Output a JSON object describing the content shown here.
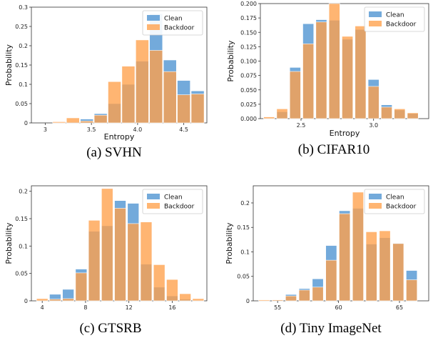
{
  "colors": {
    "clean": "#5b9bd5",
    "backdoor": "#ffa04a"
  },
  "chart_data": [
    {
      "type": "bar",
      "caption": "(a)  SVHN",
      "xlabel": "Entropy",
      "ylabel": "Probability",
      "xlim": [
        2.85,
        4.75
      ],
      "ylim": [
        0,
        0.3
      ],
      "xticks": [
        3,
        3.5,
        4.0,
        4.5
      ],
      "xtick_labels": [
        "3",
        "3.5",
        "4.0",
        "4.5"
      ],
      "yticks": [
        0,
        0.05,
        0.1,
        0.15,
        0.2,
        0.25,
        0.3
      ],
      "ytick_labels": [
        "0",
        "0.05",
        "0.1",
        "0.15",
        "0.2",
        "0.25",
        "0.3"
      ],
      "bar_width": 0.14,
      "legend": "top-right",
      "series": [
        {
          "name": "Clean",
          "x": [
            3.15,
            3.3,
            3.45,
            3.6,
            3.75,
            3.9,
            4.05,
            4.2,
            4.35,
            4.5,
            4.65
          ],
          "values": [
            0.001,
            0.002,
            0.01,
            0.024,
            0.05,
            0.1,
            0.16,
            0.283,
            0.163,
            0.11,
            0.083
          ]
        },
        {
          "name": "Backdoor",
          "x": [
            3.15,
            3.3,
            3.45,
            3.6,
            3.75,
            3.9,
            4.05,
            4.2,
            4.35,
            4.5,
            4.65
          ],
          "values": [
            0.003,
            0.013,
            0.005,
            0.02,
            0.107,
            0.147,
            0.215,
            0.188,
            0.133,
            0.073,
            0.075
          ]
        }
      ]
    },
    {
      "type": "bar",
      "caption": "(b)  CIFAR10",
      "xlabel": "Entropy",
      "ylabel": "Probability",
      "xlim": [
        2.22,
        3.38
      ],
      "ylim": [
        0,
        0.2
      ],
      "xticks": [
        2.5,
        3.0
      ],
      "xtick_labels": [
        "2.5",
        "3.0"
      ],
      "yticks": [
        0,
        0.025,
        0.05,
        0.075,
        0.1,
        0.125,
        0.15,
        0.175,
        0.2
      ],
      "ytick_labels": [
        "0.000",
        "0.025",
        "0.050",
        "0.075",
        "0.100",
        "0.125",
        "0.150",
        "0.175",
        "0.200"
      ],
      "bar_width": 0.075,
      "legend": "top-right",
      "series": [
        {
          "name": "Clean",
          "x": [
            2.28,
            2.37,
            2.46,
            2.55,
            2.64,
            2.73,
            2.82,
            2.91,
            3.0,
            3.09,
            3.18,
            3.27
          ],
          "values": [
            0.001,
            0.012,
            0.089,
            0.165,
            0.172,
            0.171,
            0.138,
            0.155,
            0.068,
            0.024,
            0.015,
            0.009
          ]
        },
        {
          "name": "Backdoor",
          "x": [
            2.28,
            2.37,
            2.46,
            2.55,
            2.64,
            2.73,
            2.82,
            2.91,
            3.0,
            3.09,
            3.18,
            3.27
          ],
          "values": [
            0.003,
            0.017,
            0.082,
            0.13,
            0.168,
            0.2,
            0.143,
            0.161,
            0.056,
            0.02,
            0.017,
            0.01
          ]
        }
      ]
    },
    {
      "type": "bar",
      "caption": "(c)  GTSRB",
      "xlabel": "",
      "ylabel": "Probability",
      "xlim": [
        3.0,
        19.2
      ],
      "ylim": [
        0,
        0.21
      ],
      "xticks": [
        4,
        8,
        12,
        16
      ],
      "xtick_labels": [
        "4",
        "8",
        "12",
        "16"
      ],
      "yticks": [
        0,
        0.05,
        0.1,
        0.15,
        0.2
      ],
      "ytick_labels": [
        "0",
        "0.05",
        "0.1",
        "0.15",
        "0.2"
      ],
      "bar_width": 1.05,
      "legend": "top-right",
      "series": [
        {
          "name": "Clean",
          "x": [
            4.0,
            5.2,
            6.4,
            7.6,
            8.8,
            10.0,
            11.2,
            12.4,
            13.6,
            14.8,
            16.0,
            17.2,
            18.4
          ],
          "values": [
            0.001,
            0.012,
            0.021,
            0.058,
            0.127,
            0.137,
            0.183,
            0.178,
            0.067,
            0.025,
            0.009,
            0.003,
            0.001
          ]
        },
        {
          "name": "Backdoor",
          "x": [
            4.0,
            5.2,
            6.4,
            7.6,
            8.8,
            10.0,
            11.2,
            12.4,
            13.6,
            14.8,
            16.0,
            17.2,
            18.4
          ],
          "values": [
            0.004,
            0.003,
            0.004,
            0.051,
            0.147,
            0.205,
            0.169,
            0.141,
            0.144,
            0.066,
            0.039,
            0.013,
            0.004
          ]
        }
      ]
    },
    {
      "type": "bar",
      "caption": "(d)  Tiny ImageNet",
      "xlabel": "",
      "ylabel": "Probability",
      "xlim": [
        53.0,
        67.4
      ],
      "ylim": [
        0,
        0.235
      ],
      "xticks": [
        55,
        60,
        65
      ],
      "xtick_labels": [
        "55",
        "60",
        "65"
      ],
      "yticks": [
        0,
        0.05,
        0.1,
        0.15,
        0.2
      ],
      "ytick_labels": [
        "0",
        "0.05",
        "0.1",
        "0.15",
        "0.2"
      ],
      "bar_width": 0.9,
      "legend": "top-right",
      "series": [
        {
          "name": "Clean",
          "x": [
            53.9,
            55.0,
            56.1,
            57.2,
            58.3,
            59.4,
            60.5,
            61.6,
            62.7,
            63.8,
            64.9,
            66.0
          ],
          "values": [
            0.001,
            0.002,
            0.013,
            0.025,
            0.045,
            0.113,
            0.184,
            0.189,
            0.116,
            0.129,
            0.118,
            0.062
          ]
        },
        {
          "name": "Backdoor",
          "x": [
            53.9,
            55.0,
            56.1,
            57.2,
            58.3,
            59.4,
            60.5,
            61.6,
            62.7,
            63.8,
            64.9,
            66.0
          ],
          "values": [
            0.002,
            0.002,
            0.01,
            0.022,
            0.028,
            0.083,
            0.178,
            0.222,
            0.141,
            0.143,
            0.117,
            0.043
          ]
        }
      ]
    }
  ]
}
